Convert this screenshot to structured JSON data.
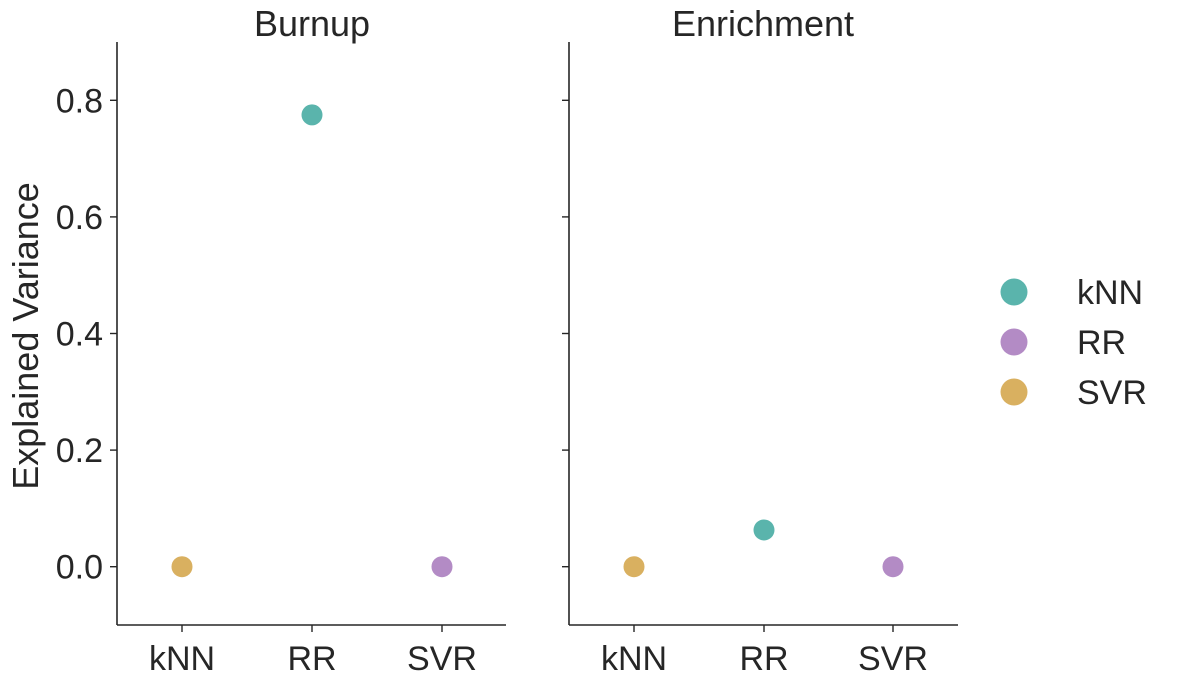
{
  "chart_data": {
    "type": "scatter",
    "ylabel": "Explained Variance",
    "ylim": [
      -0.1,
      0.9
    ],
    "yticks": [
      "0.0",
      "0.2",
      "0.4",
      "0.6",
      "0.8"
    ],
    "yticks_values": [
      0.0,
      0.2,
      0.4,
      0.6,
      0.8
    ],
    "categories": [
      "kNN",
      "RR",
      "SVR"
    ],
    "grid": false,
    "legend_position": "right",
    "legend": [
      {
        "label": "kNN",
        "color": "#5ab4ac"
      },
      {
        "label": "RR",
        "color": "#b38bc5"
      },
      {
        "label": "SVR",
        "color": "#d9b060"
      }
    ],
    "panels": [
      {
        "title": "Burnup",
        "points": [
          {
            "x": "kNN",
            "y": 0.0,
            "color": "#d9b060"
          },
          {
            "x": "RR",
            "y": 0.775,
            "color": "#5ab4ac"
          },
          {
            "x": "SVR",
            "y": 0.0,
            "color": "#b38bc5"
          }
        ]
      },
      {
        "title": "Enrichment",
        "points": [
          {
            "x": "kNN",
            "y": 0.0,
            "color": "#d9b060"
          },
          {
            "x": "RR",
            "y": 0.063,
            "color": "#5ab4ac"
          },
          {
            "x": "SVR",
            "y": 0.0,
            "color": "#b38bc5"
          }
        ]
      }
    ]
  }
}
